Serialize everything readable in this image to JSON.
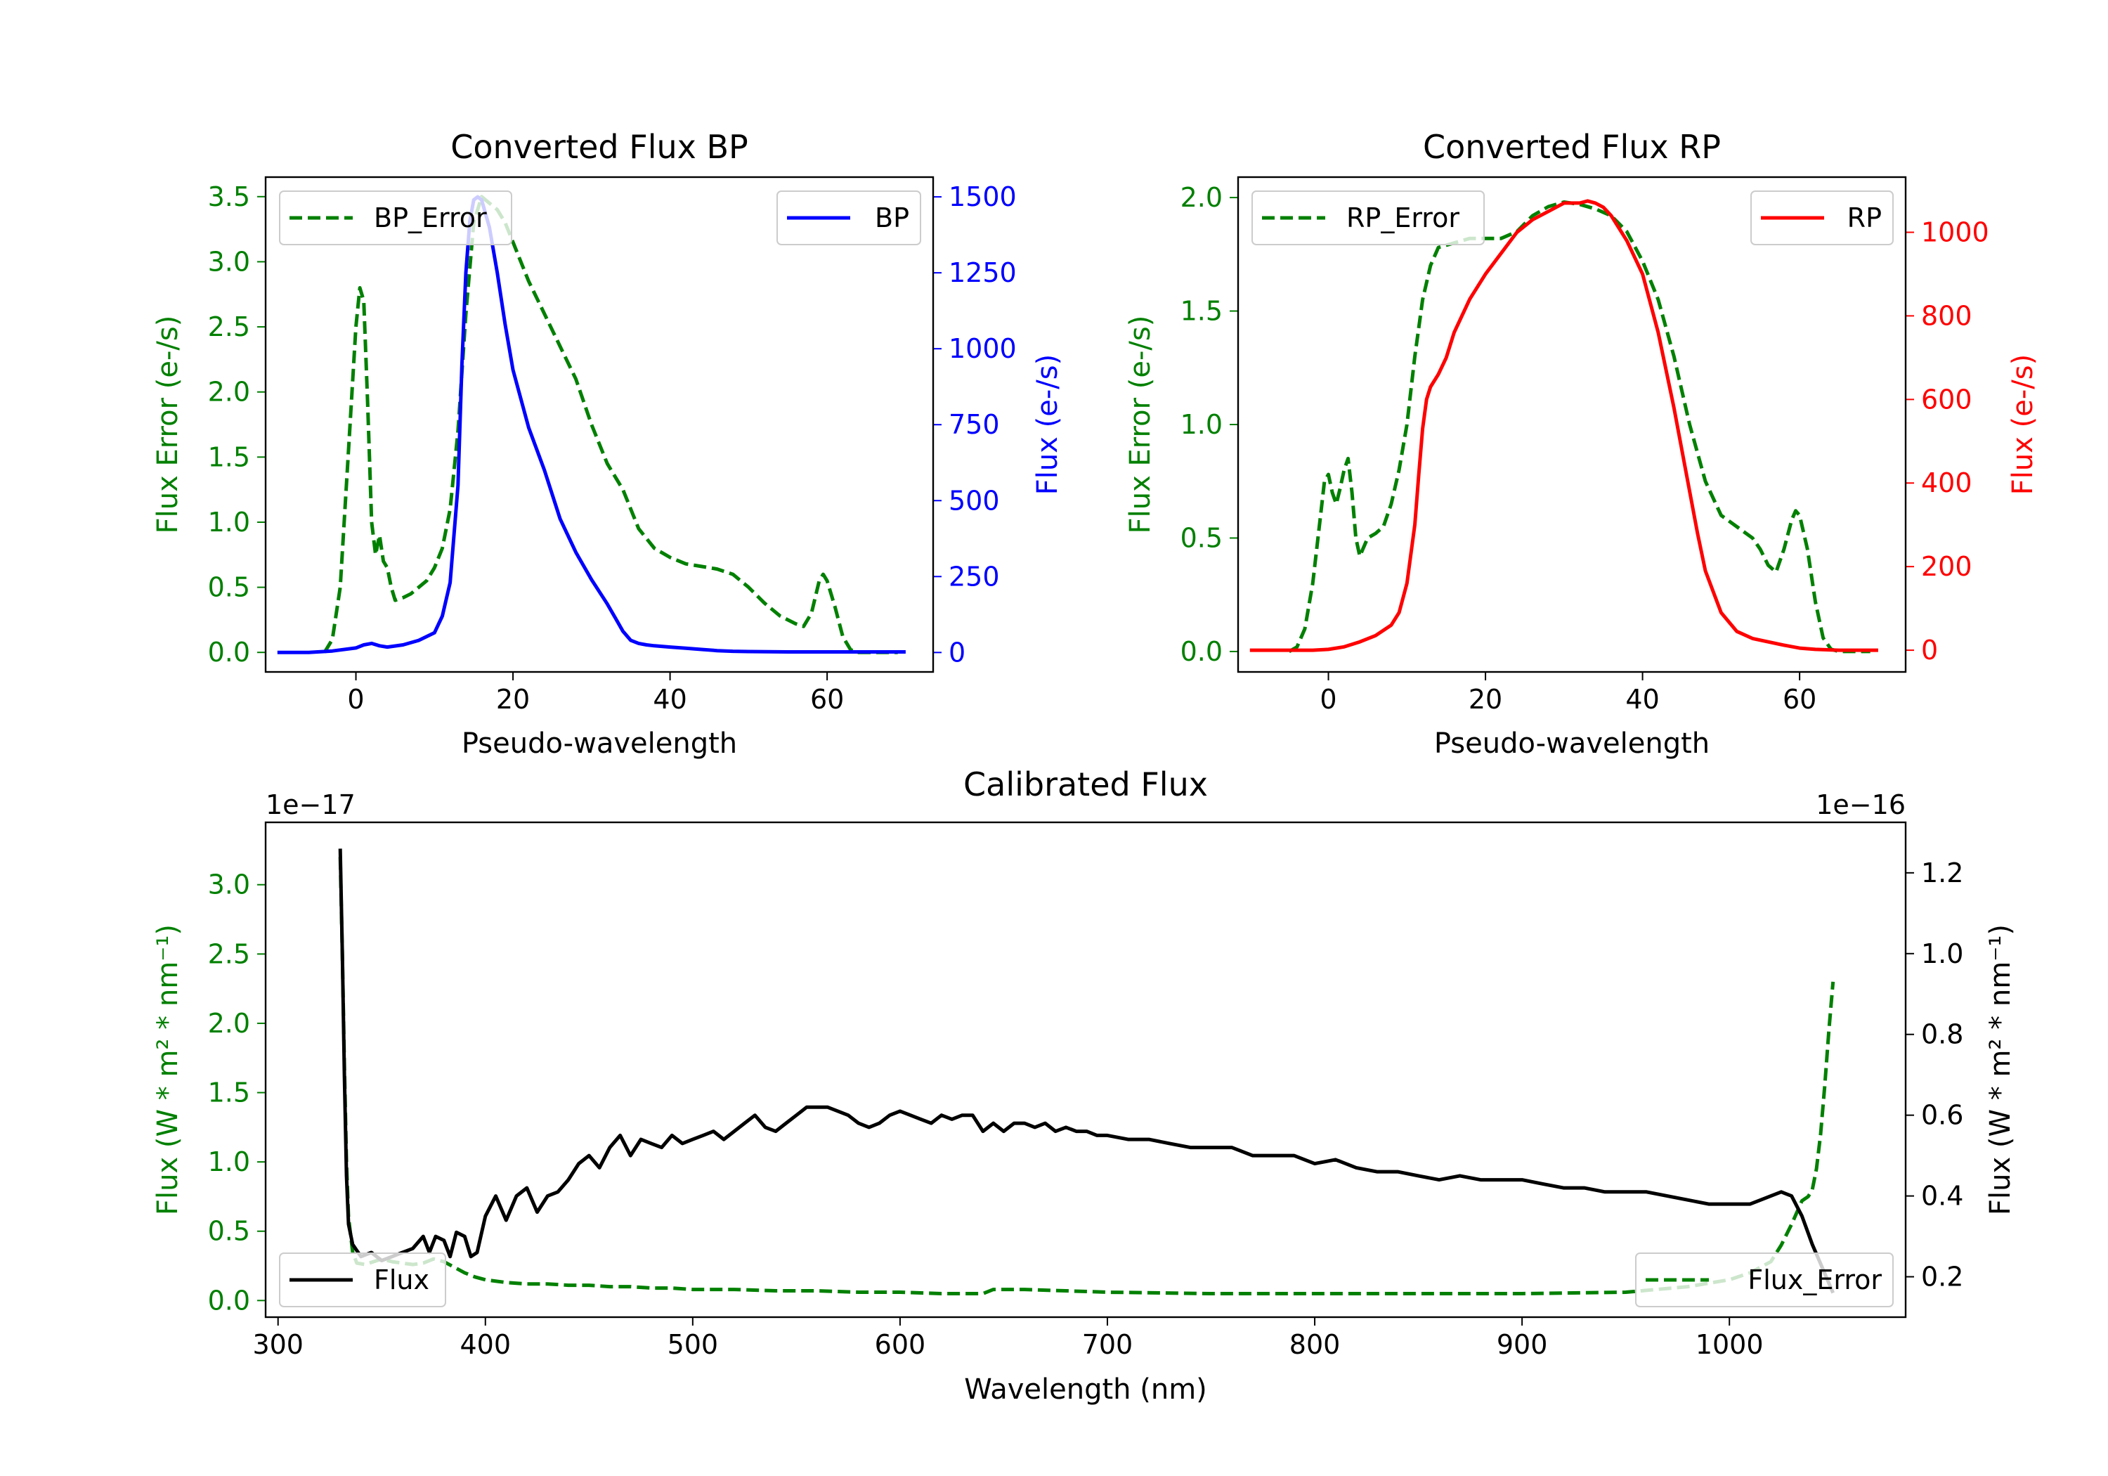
{
  "chart_data": [
    {
      "type": "line",
      "title": "Converted Flux BP",
      "xlabel": "Pseudo-wavelength",
      "ylabel_left": "Flux Error (e-/s)",
      "ylabel_right": "Flux (e-/s)",
      "xlim": [
        -11.5,
        73.5
      ],
      "ylim_left": [
        -0.15,
        3.65
      ],
      "ylim_right": [
        -64,
        1565
      ],
      "x_ticks": [
        0,
        20,
        40,
        60
      ],
      "y_ticks_left": [
        0.0,
        0.5,
        1.0,
        1.5,
        2.0,
        2.5,
        3.0,
        3.5
      ],
      "y_ticks_right": [
        0,
        250,
        500,
        750,
        1000,
        1250,
        1500
      ],
      "left_color": "#008000",
      "right_color": "#0000ff",
      "series": [
        {
          "name": "BP_Error",
          "axis": "left",
          "style": "dashed",
          "color": "#008000",
          "x": [
            -4,
            -3,
            -2,
            -1,
            0,
            0.5,
            1,
            1.5,
            2,
            2.5,
            3,
            3.5,
            4,
            4.5,
            5,
            6,
            7,
            8,
            9,
            10,
            11,
            12,
            13,
            14,
            15,
            16,
            17,
            18,
            19,
            20,
            22,
            24,
            26,
            28,
            30,
            32,
            34,
            36,
            38,
            40,
            42,
            44,
            46,
            48,
            50,
            52,
            54,
            56,
            57,
            58,
            59,
            59.5,
            60,
            61,
            62,
            63,
            64,
            65,
            66,
            67,
            68,
            69
          ],
          "values": [
            0.0,
            0.1,
            0.5,
            1.5,
            2.5,
            2.8,
            2.7,
            1.9,
            1.0,
            0.75,
            0.9,
            0.7,
            0.65,
            0.5,
            0.4,
            0.42,
            0.45,
            0.5,
            0.55,
            0.65,
            0.8,
            1.1,
            1.7,
            2.6,
            3.3,
            3.5,
            3.45,
            3.4,
            3.3,
            3.15,
            2.85,
            2.6,
            2.35,
            2.1,
            1.75,
            1.45,
            1.25,
            0.95,
            0.8,
            0.73,
            0.68,
            0.66,
            0.64,
            0.6,
            0.5,
            0.38,
            0.28,
            0.22,
            0.2,
            0.3,
            0.55,
            0.6,
            0.55,
            0.35,
            0.12,
            0.02,
            0.0,
            0.0,
            0.0,
            0.0,
            0.0,
            0.0
          ]
        },
        {
          "name": "BP",
          "axis": "right",
          "style": "solid",
          "color": "#0000ff",
          "x": [
            -10,
            -6,
            -3,
            0,
            1,
            2,
            3,
            4,
            6,
            8,
            10,
            11,
            12,
            13,
            13.5,
            14,
            14.5,
            15,
            15.5,
            16,
            17,
            18,
            19,
            20,
            22,
            24,
            26,
            28,
            30,
            32,
            33,
            34,
            35,
            36,
            37,
            38,
            40,
            42,
            44,
            46,
            48,
            50,
            55,
            60,
            65,
            70
          ],
          "values": [
            0,
            0,
            5,
            15,
            25,
            30,
            22,
            18,
            25,
            40,
            65,
            120,
            230,
            550,
            950,
            1250,
            1420,
            1490,
            1500,
            1490,
            1400,
            1250,
            1080,
            930,
            740,
            600,
            440,
            330,
            240,
            160,
            115,
            70,
            40,
            30,
            25,
            22,
            18,
            14,
            10,
            6,
            4,
            3,
            2,
            2,
            2,
            2
          ]
        }
      ]
    },
    {
      "type": "line",
      "title": "Converted Flux RP",
      "xlabel": "Pseudo-wavelength",
      "ylabel_left": "Flux Error (e-/s)",
      "ylabel_right": "Flux (e-/s)",
      "xlim": [
        -11.5,
        73.5
      ],
      "ylim_left": [
        -0.09,
        2.09
      ],
      "ylim_right": [
        -52,
        1132
      ],
      "x_ticks": [
        0,
        20,
        40,
        60
      ],
      "y_ticks_left": [
        0.0,
        0.5,
        1.0,
        1.5,
        2.0
      ],
      "y_ticks_right": [
        0,
        200,
        400,
        600,
        800,
        1000
      ],
      "left_color": "#008000",
      "right_color": "#ff0000",
      "series": [
        {
          "name": "RP_Error",
          "axis": "left",
          "style": "dashed",
          "color": "#008000",
          "x": [
            -5,
            -4,
            -3,
            -2,
            -1,
            -0.5,
            0,
            0.5,
            1,
            1.5,
            2,
            2.5,
            3,
            3.5,
            4,
            5,
            6,
            7,
            8,
            9,
            10,
            11,
            12,
            13,
            14,
            16,
            18,
            20,
            22,
            24,
            26,
            28,
            30,
            32,
            34,
            36,
            38,
            40,
            42,
            44,
            46,
            48,
            50,
            52,
            54,
            55,
            56,
            57,
            58,
            59,
            59.5,
            60,
            61,
            62,
            63,
            64,
            65,
            66,
            67,
            68,
            69
          ],
          "values": [
            0.0,
            0.02,
            0.1,
            0.3,
            0.6,
            0.75,
            0.78,
            0.7,
            0.65,
            0.72,
            0.8,
            0.85,
            0.7,
            0.5,
            0.42,
            0.5,
            0.52,
            0.55,
            0.65,
            0.8,
            1.0,
            1.3,
            1.55,
            1.7,
            1.78,
            1.8,
            1.82,
            1.82,
            1.82,
            1.85,
            1.92,
            1.96,
            1.98,
            1.97,
            1.95,
            1.92,
            1.85,
            1.72,
            1.55,
            1.3,
            1.0,
            0.75,
            0.6,
            0.55,
            0.5,
            0.45,
            0.38,
            0.35,
            0.45,
            0.58,
            0.62,
            0.6,
            0.45,
            0.22,
            0.06,
            0.01,
            0.0,
            0.0,
            0.0,
            0.0,
            0.0
          ]
        },
        {
          "name": "RP",
          "axis": "right",
          "style": "solid",
          "color": "#ff0000",
          "x": [
            -10,
            -5,
            -2,
            0,
            2,
            4,
            6,
            8,
            9,
            10,
            11,
            11.5,
            12,
            12.5,
            13,
            14,
            15,
            16,
            18,
            20,
            22,
            24,
            26,
            28,
            30,
            32,
            33,
            34,
            35,
            36,
            38,
            40,
            42,
            44,
            46,
            47,
            48,
            50,
            52,
            54,
            56,
            58,
            60,
            62,
            65,
            70
          ],
          "values": [
            0,
            0,
            0,
            2,
            8,
            20,
            35,
            60,
            90,
            160,
            300,
            420,
            530,
            600,
            630,
            660,
            700,
            760,
            840,
            900,
            950,
            1000,
            1030,
            1050,
            1070,
            1070,
            1075,
            1070,
            1060,
            1040,
            980,
            900,
            760,
            580,
            380,
            280,
            190,
            90,
            45,
            28,
            20,
            12,
            5,
            2,
            0,
            0
          ]
        }
      ]
    },
    {
      "type": "line",
      "title": "Calibrated Flux",
      "xlabel": "Wavelength (nm)",
      "ylabel_left": "Flux (W * m² * nm⁻¹)",
      "ylabel_right": "Flux (W * m² * nm⁻¹)",
      "offset_left": "1e−17",
      "offset_right": "1e−16",
      "xlim": [
        294,
        1085
      ],
      "ylim_left": [
        -0.12,
        3.45
      ],
      "ylim_right": [
        0.1,
        1.325
      ],
      "x_ticks": [
        300,
        400,
        500,
        600,
        700,
        800,
        900,
        1000
      ],
      "y_ticks_left": [
        0.0,
        0.5,
        1.0,
        1.5,
        2.0,
        2.5,
        3.0
      ],
      "y_ticks_right": [
        0.2,
        0.4,
        0.6,
        0.8,
        1.0,
        1.2
      ],
      "left_color": "#008000",
      "right_color": "#000000",
      "series": [
        {
          "name": "Flux_Error",
          "axis": "left",
          "style": "dashed",
          "color": "#008000",
          "x": [
            330,
            331,
            332,
            333,
            334,
            336,
            338,
            342,
            346,
            350,
            355,
            360,
            365,
            370,
            375,
            380,
            385,
            390,
            395,
            400,
            410,
            420,
            430,
            440,
            450,
            460,
            470,
            480,
            490,
            500,
            520,
            540,
            560,
            580,
            600,
            620,
            640,
            645,
            660,
            700,
            750,
            800,
            850,
            900,
            950,
            980,
            1000,
            1010,
            1020,
            1025,
            1030,
            1035,
            1038,
            1040,
            1042,
            1044,
            1046,
            1048,
            1050
          ],
          "values": [
            3.2,
            2.5,
            1.7,
            1.0,
            0.6,
            0.35,
            0.27,
            0.26,
            0.28,
            0.3,
            0.28,
            0.27,
            0.26,
            0.27,
            0.3,
            0.28,
            0.24,
            0.2,
            0.17,
            0.15,
            0.13,
            0.12,
            0.12,
            0.11,
            0.11,
            0.1,
            0.1,
            0.09,
            0.09,
            0.08,
            0.08,
            0.07,
            0.07,
            0.06,
            0.06,
            0.05,
            0.05,
            0.08,
            0.08,
            0.06,
            0.05,
            0.05,
            0.05,
            0.05,
            0.06,
            0.1,
            0.15,
            0.2,
            0.28,
            0.4,
            0.55,
            0.72,
            0.75,
            0.8,
            0.95,
            1.2,
            1.55,
            1.95,
            2.3
          ]
        },
        {
          "name": "Flux",
          "axis": "right",
          "style": "solid",
          "color": "#000000",
          "x": [
            330,
            331,
            332,
            333,
            334,
            336,
            340,
            345,
            350,
            355,
            360,
            365,
            370,
            373,
            376,
            380,
            383,
            386,
            390,
            393,
            396,
            400,
            405,
            410,
            415,
            420,
            425,
            430,
            435,
            440,
            445,
            450,
            455,
            460,
            465,
            470,
            475,
            480,
            485,
            490,
            495,
            500,
            505,
            510,
            515,
            520,
            525,
            530,
            535,
            540,
            545,
            550,
            555,
            560,
            565,
            570,
            575,
            580,
            585,
            590,
            595,
            600,
            605,
            610,
            615,
            620,
            625,
            630,
            635,
            640,
            645,
            650,
            655,
            660,
            665,
            670,
            675,
            680,
            685,
            690,
            695,
            700,
            710,
            720,
            730,
            740,
            750,
            760,
            770,
            780,
            790,
            800,
            810,
            820,
            830,
            840,
            850,
            860,
            870,
            880,
            890,
            900,
            910,
            920,
            930,
            940,
            950,
            960,
            970,
            980,
            990,
            1000,
            1005,
            1010,
            1015,
            1020,
            1025,
            1030,
            1035,
            1040,
            1045,
            1050
          ],
          "values": [
            1.26,
            1.0,
            0.7,
            0.45,
            0.33,
            0.28,
            0.25,
            0.26,
            0.24,
            0.25,
            0.26,
            0.27,
            0.3,
            0.26,
            0.3,
            0.29,
            0.25,
            0.31,
            0.3,
            0.25,
            0.26,
            0.35,
            0.4,
            0.34,
            0.4,
            0.42,
            0.36,
            0.4,
            0.41,
            0.44,
            0.48,
            0.5,
            0.47,
            0.52,
            0.55,
            0.5,
            0.54,
            0.53,
            0.52,
            0.55,
            0.53,
            0.54,
            0.55,
            0.56,
            0.54,
            0.56,
            0.58,
            0.6,
            0.57,
            0.56,
            0.58,
            0.6,
            0.62,
            0.62,
            0.62,
            0.61,
            0.6,
            0.58,
            0.57,
            0.58,
            0.6,
            0.61,
            0.6,
            0.59,
            0.58,
            0.6,
            0.59,
            0.6,
            0.6,
            0.56,
            0.58,
            0.56,
            0.58,
            0.58,
            0.57,
            0.58,
            0.56,
            0.57,
            0.56,
            0.56,
            0.55,
            0.55,
            0.54,
            0.54,
            0.53,
            0.52,
            0.52,
            0.52,
            0.5,
            0.5,
            0.5,
            0.48,
            0.49,
            0.47,
            0.46,
            0.46,
            0.45,
            0.44,
            0.45,
            0.44,
            0.44,
            0.44,
            0.43,
            0.42,
            0.42,
            0.41,
            0.41,
            0.41,
            0.4,
            0.39,
            0.38,
            0.38,
            0.38,
            0.38,
            0.39,
            0.4,
            0.41,
            0.4,
            0.35,
            0.28,
            0.22,
            0.16
          ]
        }
      ]
    }
  ]
}
